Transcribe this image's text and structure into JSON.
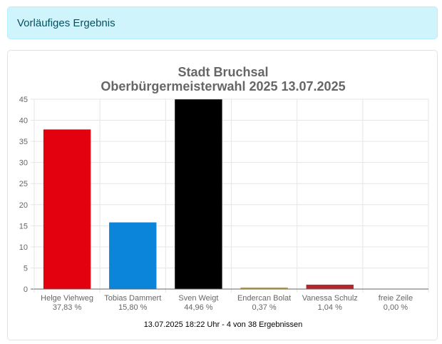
{
  "alert": {
    "text": "Vorläufiges Ergebnis"
  },
  "chart_data": {
    "type": "bar",
    "title": "Stadt Bruchsal",
    "subtitle": "Oberbürgermeisterwahl 2025 13.07.2025",
    "categories": [
      "Helge Viehweg",
      "Tobias Dammert",
      "Sven Weigt",
      "Endercan Bolat",
      "Vanessa Schulz",
      "freie Zeile"
    ],
    "percent_labels": [
      "37,83 %",
      "15,80 %",
      "44,96 %",
      "0,37 %",
      "1,04 %",
      "0,00 %"
    ],
    "values": [
      37.83,
      15.8,
      44.96,
      0.37,
      1.04,
      0
    ],
    "colors": [
      "#e3000f",
      "#0a85d9",
      "#000000",
      "#c9a227",
      "#b3262c",
      "#cccccc"
    ],
    "ylim": [
      0,
      45
    ],
    "yticks": [
      0,
      5,
      10,
      15,
      20,
      25,
      30,
      35,
      40,
      45
    ],
    "grid": true,
    "footer": "13.07.2025 18:22 Uhr - 4 von 38 Ergebnissen"
  }
}
